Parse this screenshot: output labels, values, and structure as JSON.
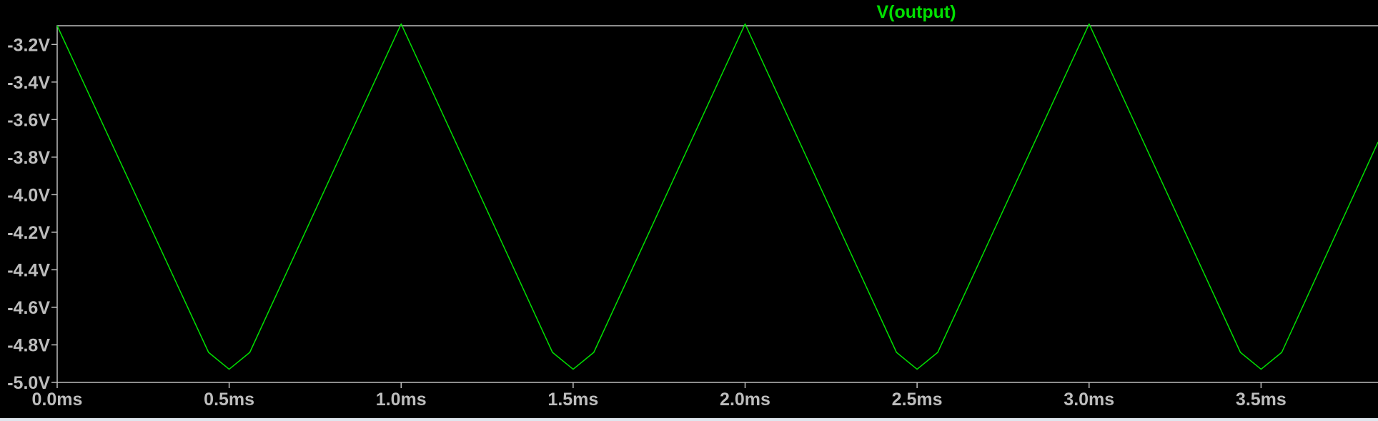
{
  "chart_data": {
    "type": "line",
    "title": "",
    "xlabel": "",
    "ylabel": "",
    "xlim": [
      0.0,
      3.84
    ],
    "ylim": [
      -5.0,
      -3.1
    ],
    "x_ticks": [
      0.0,
      0.5,
      1.0,
      1.5,
      2.0,
      2.5,
      3.0,
      3.5
    ],
    "x_tick_labels": [
      "0.0ms",
      "0.5ms",
      "1.0ms",
      "1.5ms",
      "2.0ms",
      "2.5ms",
      "3.0ms",
      "3.5ms"
    ],
    "y_ticks": [
      -3.2,
      -3.4,
      -3.6,
      -3.8,
      -4.0,
      -4.2,
      -4.4,
      -4.6,
      -4.8,
      -5.0
    ],
    "y_tick_labels": [
      "-3.2V",
      "-3.4V",
      "-3.6V",
      "-3.8V",
      "-4.0V",
      "-4.2V",
      "-4.4V",
      "-4.6V",
      "-4.8V",
      "-5.0V"
    ],
    "grid": false,
    "series": [
      {
        "name": "V(output)",
        "color": "#00e000",
        "x": [
          0.0,
          0.44,
          0.5,
          0.56,
          1.0,
          1.44,
          1.5,
          1.56,
          2.0,
          2.44,
          2.5,
          2.56,
          3.0,
          3.44,
          3.5,
          3.56,
          3.84
        ],
        "y": [
          -3.1,
          -4.84,
          -4.93,
          -4.84,
          -3.09,
          -4.84,
          -4.93,
          -4.84,
          -3.09,
          -4.84,
          -4.93,
          -4.84,
          -3.09,
          -4.84,
          -4.93,
          -4.84,
          -3.72
        ]
      }
    ]
  },
  "colors": {
    "background": "#000000",
    "frame": "#bdbdbd",
    "text": "#bdbdbd",
    "trace": "#00e000"
  }
}
